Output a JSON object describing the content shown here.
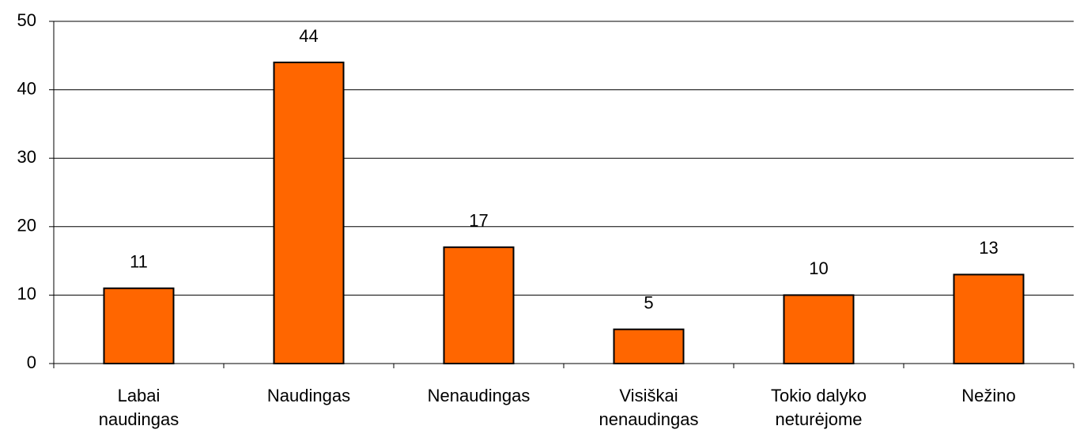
{
  "chart_data": {
    "type": "bar",
    "categories": [
      "Labai naudingas",
      "Naudingas",
      "Nenaudingas",
      "Visiškai nenaudingas",
      "Tokio dalyko neturėjome",
      "Nežino"
    ],
    "values": [
      11,
      44,
      17,
      5,
      10,
      13
    ],
    "color": "#ff6600",
    "ylim": [
      0,
      50
    ],
    "yticks": [
      0,
      10,
      20,
      30,
      40,
      50
    ],
    "grid": true
  }
}
